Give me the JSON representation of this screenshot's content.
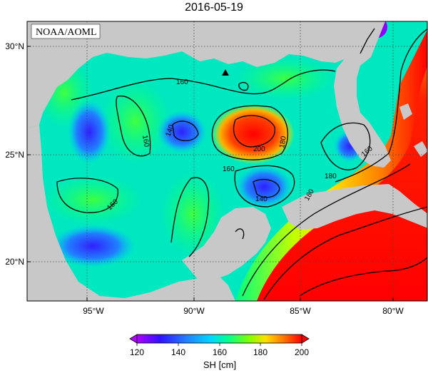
{
  "title": "2016-05-19",
  "agency": "NOAA/AOML",
  "lat_labels": [
    "30°N",
    "25°N",
    "20°N"
  ],
  "lon_labels": [
    "95°W",
    "90°W",
    "85°W",
    "80°W"
  ],
  "contour_labels": [
    "160",
    "160",
    "140",
    "160",
    "140",
    "200",
    "180",
    "160",
    "180",
    "160",
    "180"
  ],
  "colorbar": {
    "ticks": [
      "120",
      "140",
      "160",
      "180",
      "200"
    ],
    "label": "SH [cm]",
    "colors": [
      "#b000ff",
      "#2030ff",
      "#00c8ff",
      "#00ff80",
      "#c0ff00",
      "#ffe000",
      "#ff8000",
      "#ff0000"
    ]
  },
  "colors": {
    "land": "#c8c8c8",
    "contour": "#000000",
    "grid": "#444444"
  },
  "marker": "triangle-marker"
}
